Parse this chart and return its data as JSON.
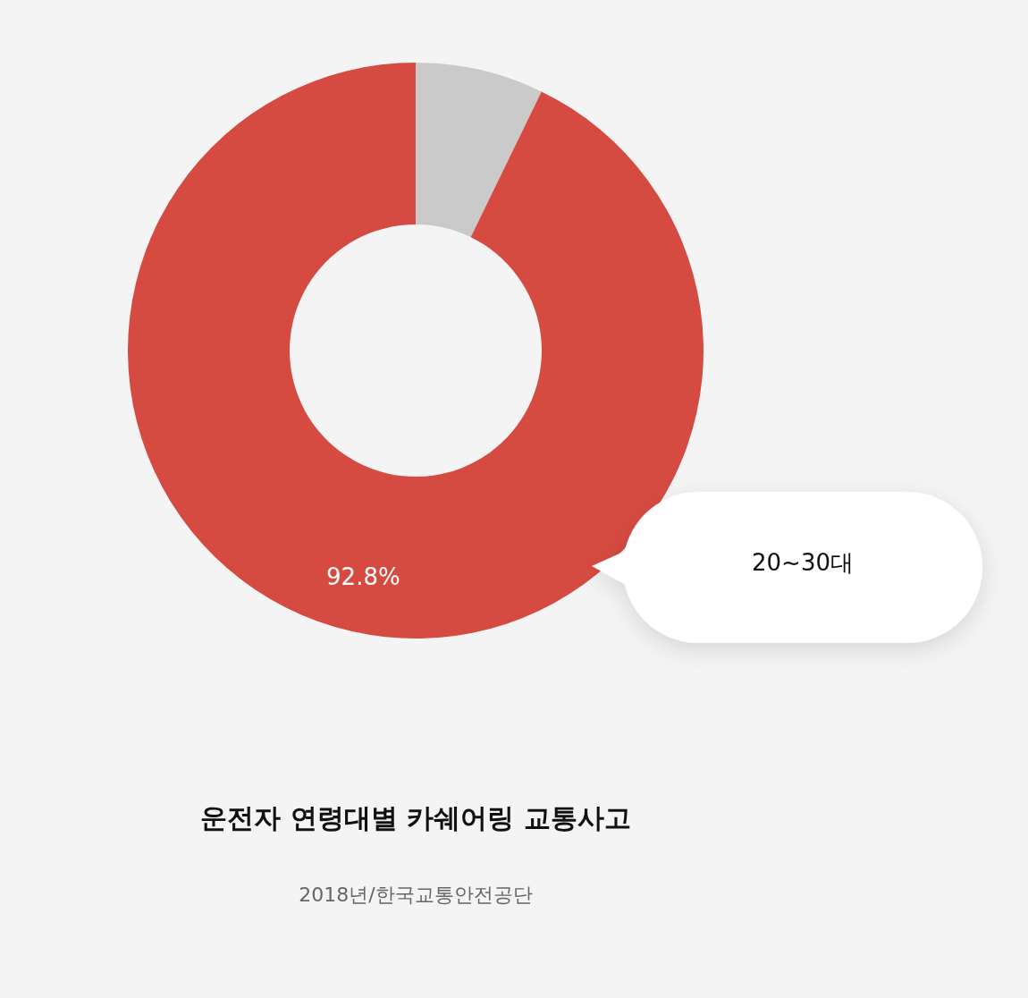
{
  "chart_data": {
    "type": "donut",
    "title": "운전자 연령대별 카쉐어링 교통사고",
    "subtitle": "2018년/한국교통안전공단",
    "categories": [
      null,
      "20~30대"
    ],
    "values": [
      7.2,
      92.8
    ],
    "colors": [
      "#cacaca",
      "#d64b41"
    ],
    "value_labels": [
      null,
      "92.8%"
    ]
  }
}
